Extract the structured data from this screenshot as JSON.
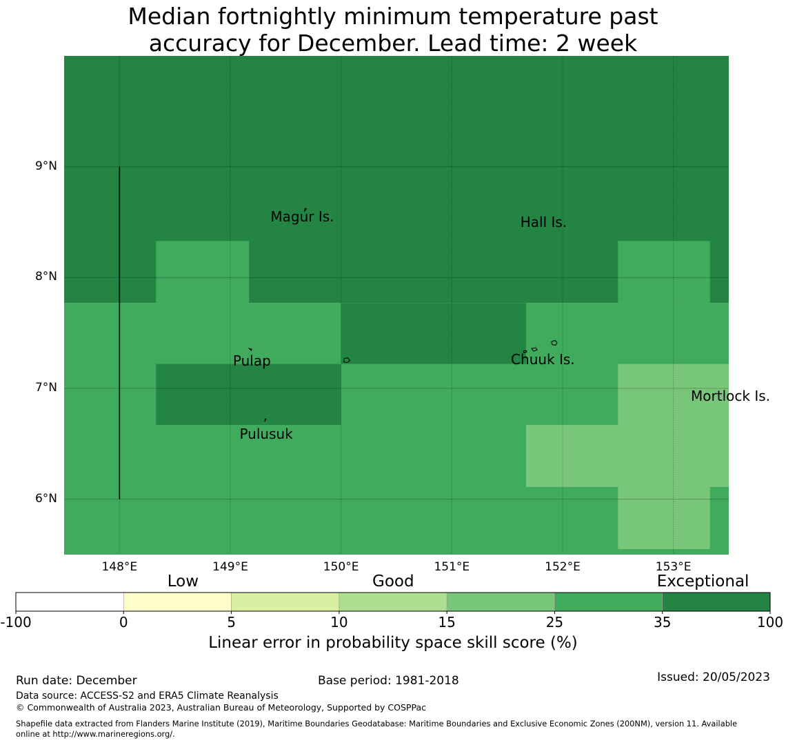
{
  "title": {
    "line1": "Median fortnightly minimum temperature past",
    "line2": "accuracy for December. Lead time: 2 week"
  },
  "map": {
    "lon_range": [
      147.5,
      153.5
    ],
    "lat_range": [
      5.5,
      10.0
    ],
    "lat_ticks": [
      {
        "value": 9,
        "label": "9°N"
      },
      {
        "value": 8,
        "label": "8°N"
      },
      {
        "value": 7,
        "label": "7°N"
      },
      {
        "value": 6,
        "label": "6°N"
      }
    ],
    "lon_ticks": [
      {
        "value": 148,
        "label": "148°E"
      },
      {
        "value": 149,
        "label": "149°E"
      },
      {
        "value": 150,
        "label": "150°E"
      },
      {
        "value": 151,
        "label": "151°E"
      },
      {
        "value": 152,
        "label": "152°E"
      },
      {
        "value": 153,
        "label": "153°E"
      }
    ],
    "skill_cells": [
      {
        "lon": [
          147.5,
          153.5
        ],
        "lat": [
          7.77,
          10.0
        ],
        "category": "exceptional"
      },
      {
        "lon": [
          147.5,
          153.5
        ],
        "lat": [
          5.5,
          7.77
        ],
        "category": "good_high"
      },
      {
        "lon": [
          148.33,
          149.17
        ],
        "lat": [
          7.77,
          8.33
        ],
        "category": "good_high"
      },
      {
        "lon": [
          152.5,
          153.33
        ],
        "lat": [
          7.77,
          8.33
        ],
        "category": "good_high"
      },
      {
        "lon": [
          150.0,
          151.67
        ],
        "lat": [
          7.22,
          7.77
        ],
        "category": "exceptional"
      },
      {
        "lon": [
          148.33,
          150.0
        ],
        "lat": [
          6.67,
          7.22
        ],
        "category": "exceptional"
      },
      {
        "lon": [
          152.5,
          153.5
        ],
        "lat": [
          6.11,
          7.22
        ],
        "category": "good_mid"
      },
      {
        "lon": [
          151.67,
          152.5
        ],
        "lat": [
          6.11,
          6.67
        ],
        "category": "good_mid"
      },
      {
        "lon": [
          152.5,
          153.33
        ],
        "lat": [
          5.55,
          6.11
        ],
        "category": "good_mid"
      }
    ],
    "boundary_line": {
      "lon": 148.0,
      "lat": [
        6.0,
        9.0
      ]
    },
    "places": [
      {
        "name": "Magur Is.",
        "lon": 149.68,
        "lat": 8.55
      },
      {
        "name": "Hall Is.",
        "lon": 151.9,
        "lat": 8.5
      },
      {
        "name": "Pulap",
        "lon": 149.2,
        "lat": 7.25
      },
      {
        "name": "Chuuk Is.",
        "lon": 151.85,
        "lat": 7.26
      },
      {
        "name": "Mortlock Is.",
        "lon": 153.58,
        "lat": 6.93
      },
      {
        "name": "Pulusuk",
        "lon": 149.33,
        "lat": 6.59
      }
    ]
  },
  "colors": {
    "exceptional": "#238444",
    "good_high": "#40ab5d",
    "good_mid": "#78c67a",
    "good_low": "#addf8e",
    "fair": "#d9f0a3",
    "low": "#ffffcc",
    "none": "#ffffff"
  },
  "colorbar": {
    "categories": [
      {
        "label": "Low"
      },
      {
        "label": "Good"
      },
      {
        "label": "Exceptional"
      }
    ],
    "bins": [
      "none",
      "low",
      "fair",
      "good_low",
      "good_mid",
      "good_high",
      "exceptional"
    ],
    "ticks": [
      "-100",
      "0",
      "5",
      "10",
      "15",
      "25",
      "35",
      "100"
    ],
    "label": "Linear error in probability space skill score (%)"
  },
  "footer": {
    "run_date": "Run date: December",
    "base_period": "Base period: 1981-2018",
    "issued": "Issued: 20/05/2023",
    "data_source": "Data source: ACCESS-S2 and ERA5 Climate Reanalysis",
    "copyright": "© Commonwealth of Australia 2023, Australian Bureau of Meteorology, Supported by COSPPac",
    "shapefile_line1": "Shapefile data extracted from Flanders Marine Institute (2019), Maritime Boundaries Geodatabase: Maritime Boundaries and Exclusive Economic Zones (200NM), version 11. Available",
    "shapefile_line2": "online at http://www.marineregions.org/."
  }
}
